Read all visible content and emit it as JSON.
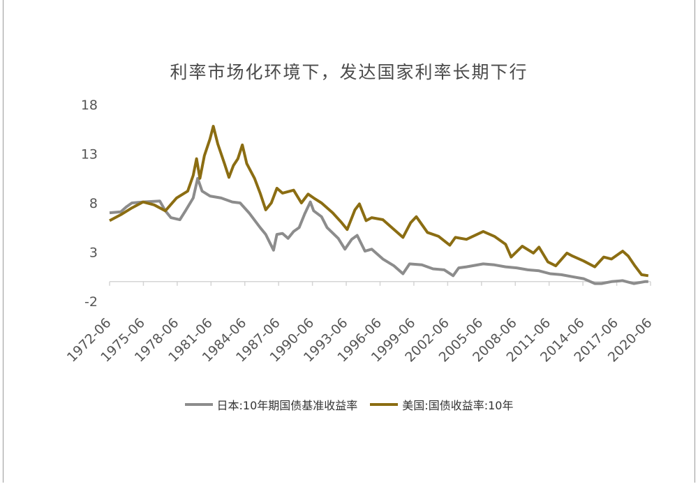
{
  "chart_data": {
    "type": "line",
    "title": "利率市场化环境下，发达国家利率长期下行",
    "ylim": [
      -2,
      18
    ],
    "yticks": [
      "18",
      "13",
      "8",
      "3",
      "-2"
    ],
    "ytick_values": [
      18,
      13,
      8,
      3,
      -2
    ],
    "x_categories": [
      "1972-06",
      "1975-06",
      "1978-06",
      "1981-06",
      "1984-06",
      "1987-06",
      "1990-06",
      "1993-06",
      "1996-06",
      "1999-06",
      "2002-06",
      "2005-06",
      "2008-06",
      "2011-06",
      "2014-06",
      "2017-06",
      "2020-06"
    ],
    "x_range": [
      1972.5,
      2021.0
    ],
    "legend_position": "bottom",
    "series": [
      {
        "name": "日本:10年期国债基准收益率",
        "color": "#8c8c8c",
        "points": [
          [
            1972.5,
            7.0
          ],
          [
            1973.5,
            7.1
          ],
          [
            1974.0,
            7.6
          ],
          [
            1974.5,
            8.0
          ],
          [
            1975.5,
            8.1
          ],
          [
            1977.0,
            8.2
          ],
          [
            1977.5,
            7.2
          ],
          [
            1978.0,
            6.5
          ],
          [
            1978.8,
            6.3
          ],
          [
            1979.3,
            7.2
          ],
          [
            1980.0,
            8.5
          ],
          [
            1980.4,
            10.5
          ],
          [
            1980.8,
            9.2
          ],
          [
            1981.5,
            8.7
          ],
          [
            1982.5,
            8.5
          ],
          [
            1983.5,
            8.1
          ],
          [
            1984.2,
            8.0
          ],
          [
            1985.0,
            7.0
          ],
          [
            1986.0,
            5.5
          ],
          [
            1986.5,
            4.8
          ],
          [
            1987.2,
            3.2
          ],
          [
            1987.5,
            4.8
          ],
          [
            1988.0,
            4.9
          ],
          [
            1988.5,
            4.4
          ],
          [
            1989.0,
            5.1
          ],
          [
            1989.5,
            5.5
          ],
          [
            1990.0,
            6.9
          ],
          [
            1990.5,
            8.1
          ],
          [
            1990.8,
            7.2
          ],
          [
            1991.5,
            6.6
          ],
          [
            1992.0,
            5.5
          ],
          [
            1993.0,
            4.4
          ],
          [
            1993.6,
            3.3
          ],
          [
            1994.2,
            4.3
          ],
          [
            1994.7,
            4.7
          ],
          [
            1995.4,
            3.1
          ],
          [
            1996.0,
            3.3
          ],
          [
            1997.0,
            2.3
          ],
          [
            1998.0,
            1.6
          ],
          [
            1998.8,
            0.8
          ],
          [
            1999.4,
            1.8
          ],
          [
            2000.5,
            1.7
          ],
          [
            2001.5,
            1.3
          ],
          [
            2002.5,
            1.2
          ],
          [
            2003.3,
            0.6
          ],
          [
            2003.8,
            1.4
          ],
          [
            2004.5,
            1.5
          ],
          [
            2006.0,
            1.8
          ],
          [
            2007.0,
            1.7
          ],
          [
            2008.0,
            1.5
          ],
          [
            2009.0,
            1.4
          ],
          [
            2010.0,
            1.2
          ],
          [
            2011.0,
            1.1
          ],
          [
            2012.0,
            0.8
          ],
          [
            2013.0,
            0.7
          ],
          [
            2014.0,
            0.5
          ],
          [
            2015.0,
            0.3
          ],
          [
            2016.0,
            -0.2
          ],
          [
            2016.6,
            -0.2
          ],
          [
            2017.5,
            0.0
          ],
          [
            2018.5,
            0.1
          ],
          [
            2019.5,
            -0.2
          ],
          [
            2020.5,
            0.0
          ],
          [
            2020.8,
            0.0
          ]
        ]
      },
      {
        "name": "美国:国债收益率:10年",
        "color": "#8b6d12",
        "points": [
          [
            1972.5,
            6.2
          ],
          [
            1973.5,
            6.8
          ],
          [
            1974.5,
            7.5
          ],
          [
            1975.5,
            8.1
          ],
          [
            1976.5,
            7.8
          ],
          [
            1977.5,
            7.2
          ],
          [
            1978.5,
            8.5
          ],
          [
            1979.5,
            9.2
          ],
          [
            1980.0,
            10.8
          ],
          [
            1980.3,
            12.5
          ],
          [
            1980.6,
            10.5
          ],
          [
            1981.0,
            12.8
          ],
          [
            1981.5,
            14.5
          ],
          [
            1981.8,
            15.8
          ],
          [
            1982.2,
            14.0
          ],
          [
            1982.8,
            12.0
          ],
          [
            1983.2,
            10.6
          ],
          [
            1983.6,
            11.8
          ],
          [
            1984.0,
            12.5
          ],
          [
            1984.4,
            13.9
          ],
          [
            1984.8,
            12.0
          ],
          [
            1985.5,
            10.5
          ],
          [
            1986.0,
            9.0
          ],
          [
            1986.5,
            7.3
          ],
          [
            1987.0,
            8.0
          ],
          [
            1987.5,
            9.5
          ],
          [
            1988.0,
            9.0
          ],
          [
            1989.0,
            9.3
          ],
          [
            1989.7,
            8.0
          ],
          [
            1990.3,
            8.9
          ],
          [
            1990.8,
            8.5
          ],
          [
            1991.5,
            8.0
          ],
          [
            1992.5,
            7.0
          ],
          [
            1993.3,
            6.0
          ],
          [
            1993.8,
            5.3
          ],
          [
            1994.5,
            7.3
          ],
          [
            1994.9,
            7.9
          ],
          [
            1995.5,
            6.2
          ],
          [
            1996.0,
            6.5
          ],
          [
            1997.0,
            6.3
          ],
          [
            1998.0,
            5.3
          ],
          [
            1998.8,
            4.5
          ],
          [
            1999.5,
            6.0
          ],
          [
            2000.0,
            6.6
          ],
          [
            2001.0,
            5.0
          ],
          [
            2002.0,
            4.6
          ],
          [
            2003.0,
            3.7
          ],
          [
            2003.5,
            4.5
          ],
          [
            2004.5,
            4.3
          ],
          [
            2006.0,
            5.1
          ],
          [
            2007.0,
            4.6
          ],
          [
            2008.0,
            3.8
          ],
          [
            2008.5,
            2.5
          ],
          [
            2009.5,
            3.6
          ],
          [
            2010.5,
            2.9
          ],
          [
            2011.0,
            3.5
          ],
          [
            2011.8,
            2.0
          ],
          [
            2012.5,
            1.6
          ],
          [
            2013.5,
            2.9
          ],
          [
            2014.0,
            2.6
          ],
          [
            2015.0,
            2.1
          ],
          [
            2016.0,
            1.5
          ],
          [
            2016.8,
            2.5
          ],
          [
            2017.5,
            2.3
          ],
          [
            2018.5,
            3.1
          ],
          [
            2019.0,
            2.6
          ],
          [
            2019.6,
            1.6
          ],
          [
            2020.2,
            0.7
          ],
          [
            2020.8,
            0.6
          ]
        ]
      }
    ]
  }
}
